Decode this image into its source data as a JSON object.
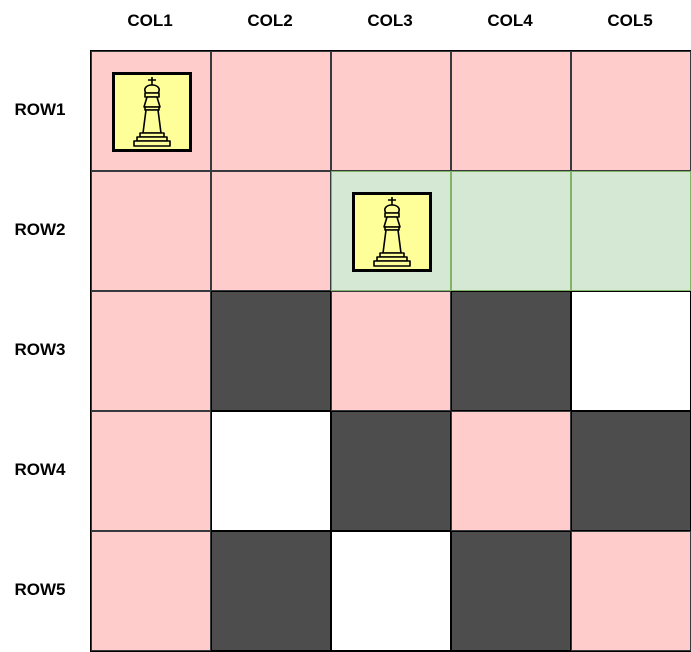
{
  "columns": [
    "COL1",
    "COL2",
    "COL3",
    "COL4",
    "COL5"
  ],
  "rows": [
    "ROW1",
    "ROW2",
    "ROW3",
    "ROW4",
    "ROW5"
  ],
  "colors": {
    "attacked": "#ffcccc",
    "dark": "#4d4d4d",
    "light": "#ffffff",
    "highlight": "#d5e8d4",
    "piece_bg": "#ffff99"
  },
  "board": [
    [
      "pink",
      "pink",
      "pink",
      "pink",
      "pink"
    ],
    [
      "pink",
      "pink",
      "green",
      "green",
      "green"
    ],
    [
      "pink",
      "dark",
      "pink",
      "dark",
      "white"
    ],
    [
      "pink",
      "white",
      "dark",
      "pink",
      "dark"
    ],
    [
      "pink",
      "dark",
      "white",
      "dark",
      "pink"
    ]
  ],
  "pieces": [
    {
      "row": 1,
      "col": 1,
      "icon": "queen-icon"
    },
    {
      "row": 2,
      "col": 3,
      "icon": "queen-icon"
    }
  ]
}
